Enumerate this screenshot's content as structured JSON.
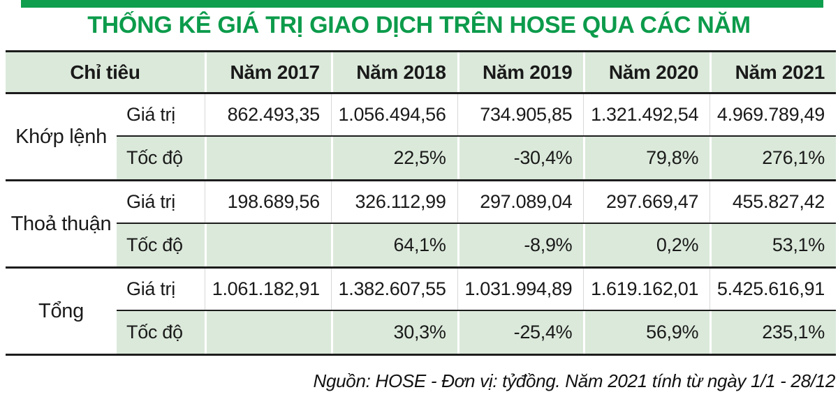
{
  "accent": {
    "green": "#0f9e4d",
    "light_green": "#dbe9da"
  },
  "title": "THỐNG KÊ GIÁ TRỊ GIAO DỊCH TRÊN HOSE QUA CÁC NĂM",
  "table": {
    "header": {
      "indicator": "Chỉ tiêu",
      "years": [
        "Năm 2017",
        "Năm 2018",
        "Năm 2019",
        "Năm 2020",
        "Năm 2021"
      ]
    },
    "row_labels": {
      "value": "Giá trị",
      "rate": "Tốc độ"
    },
    "groups": [
      {
        "name": "Khớp lệnh",
        "value": [
          "862.493,35",
          "1.056.494,56",
          "734.905,85",
          "1.321.492,54",
          "4.969.789,49"
        ],
        "rate": [
          "",
          "22,5%",
          "-30,4%",
          "79,8%",
          "276,1%"
        ]
      },
      {
        "name": "Thoả thuận",
        "value": [
          "198.689,56",
          "326.112,99",
          "297.089,04",
          "297.669,47",
          "455.827,42"
        ],
        "rate": [
          "",
          "64,1%",
          "-8,9%",
          "0,2%",
          "53,1%"
        ]
      },
      {
        "name": "Tổng",
        "value": [
          "1.061.182,91",
          "1.382.607,55",
          "1.031.994,89",
          "1.619.162,01",
          "5.425.616,91"
        ],
        "rate": [
          "",
          "30,3%",
          "-25,4%",
          "56,9%",
          "235,1%"
        ]
      }
    ]
  },
  "footer": "Nguồn: HOSE - Đơn vị: tỷđồng. Năm 2021 tính từ ngày 1/1 - 28/12",
  "chart_data": {
    "type": "table",
    "title": "THỐNG KÊ GIÁ TRỊ GIAO DỊCH TRÊN HOSE QUA CÁC NĂM",
    "columns": [
      "Chỉ tiêu",
      "",
      "Năm 2017",
      "Năm 2018",
      "Năm 2019",
      "Năm 2020",
      "Năm 2021"
    ],
    "rows": [
      [
        "Khớp lệnh",
        "Giá trị",
        "862.493,35",
        "1.056.494,56",
        "734.905,85",
        "1.321.492,54",
        "4.969.789,49"
      ],
      [
        "Khớp lệnh",
        "Tốc độ",
        "",
        "22,5%",
        "-30,4%",
        "79,8%",
        "276,1%"
      ],
      [
        "Thoả thuận",
        "Giá trị",
        "198.689,56",
        "326.112,99",
        "297.089,04",
        "297.669,47",
        "455.827,42"
      ],
      [
        "Thoả thuận",
        "Tốc độ",
        "",
        "64,1%",
        "-8,9%",
        "0,2%",
        "53,1%"
      ],
      [
        "Tổng",
        "Giá trị",
        "1.061.182,91",
        "1.382.607,55",
        "1.031.994,89",
        "1.619.162,01",
        "5.425.616,91"
      ],
      [
        "Tổng",
        "Tốc độ",
        "",
        "30,3%",
        "-25,4%",
        "56,9%",
        "235,1%"
      ]
    ],
    "source_note": "Nguồn: HOSE - Đơn vị: tỷđồng. Năm 2021 tính từ ngày 1/1 - 28/12"
  }
}
